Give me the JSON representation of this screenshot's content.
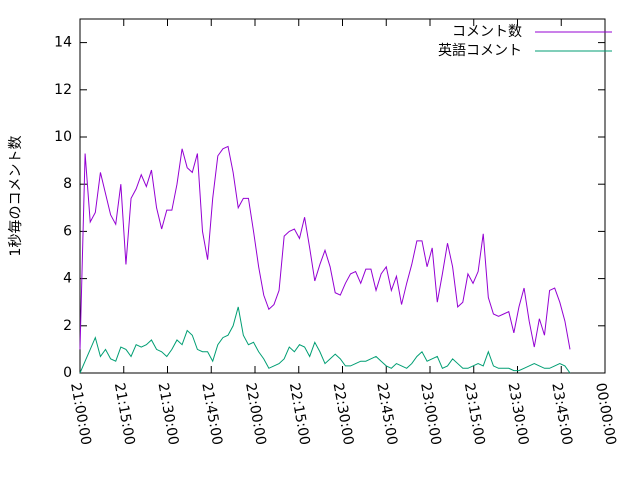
{
  "chart_data": {
    "type": "line",
    "ylabel": "1秒毎のコメント数",
    "x": [
      0,
      1.75,
      3.5,
      5.25,
      7,
      8.75,
      10.5,
      12.25,
      14,
      15.75,
      17.5,
      19.25,
      21,
      22.75,
      24.5,
      26.25,
      28,
      29.75,
      31.5,
      33.25,
      35,
      36.75,
      38.5,
      40.25,
      42,
      43.75,
      45.5,
      47.25,
      49,
      50.75,
      52.5,
      54.25,
      56,
      57.75,
      59.5,
      61.25,
      63,
      64.75,
      66.5,
      68.25,
      70,
      71.75,
      73.5,
      75.25,
      77,
      78.75,
      80.5,
      82.25,
      84,
      85.75,
      87.5,
      89.25,
      91,
      92.75,
      94.5,
      96.25,
      98,
      99.75,
      101.5,
      103.25,
      105,
      106.75,
      108.5,
      110.25,
      112,
      113.75,
      115.5,
      117.25,
      119,
      120.75,
      122.5,
      124.25,
      126,
      127.75,
      129.5,
      131.25,
      133,
      134.75,
      136.5,
      138.25,
      140,
      141.75,
      143.5,
      145.25,
      147,
      148.75,
      150.5,
      152.25,
      154,
      155.75,
      157.5,
      159.25,
      161,
      162.75,
      164.5,
      166.25,
      168
    ],
    "series": [
      {
        "name": "コメント数",
        "color": "#9400d3",
        "values": [
          1.0,
          9.3,
          6.4,
          6.8,
          8.5,
          7.6,
          6.7,
          6.3,
          8.0,
          4.6,
          7.4,
          7.8,
          8.4,
          7.9,
          8.6,
          7.0,
          6.1,
          6.9,
          6.9,
          8.0,
          9.5,
          8.7,
          8.5,
          9.3,
          6.0,
          4.8,
          7.4,
          9.2,
          9.5,
          9.6,
          8.5,
          7.0,
          7.4,
          7.4,
          6.0,
          4.5,
          3.3,
          2.7,
          2.9,
          3.5,
          5.8,
          6.0,
          6.1,
          5.7,
          6.6,
          5.3,
          3.9,
          4.6,
          5.2,
          4.5,
          3.4,
          3.3,
          3.8,
          4.2,
          4.3,
          3.8,
          4.4,
          4.4,
          3.5,
          4.2,
          4.5,
          3.5,
          4.1,
          2.9,
          3.8,
          4.6,
          5.6,
          5.6,
          4.5,
          5.3,
          3.0,
          4.2,
          5.5,
          4.5,
          2.8,
          3.0,
          4.2,
          3.8,
          4.3,
          5.9,
          3.2,
          2.5,
          2.4,
          2.5,
          2.6,
          1.7,
          2.8,
          3.6,
          2.2,
          1.1,
          2.3,
          1.6,
          3.5,
          3.6,
          3.0,
          2.2,
          1.0
        ]
      },
      {
        "name": "英語コメント",
        "color": "#009e73",
        "values": [
          0,
          0.5,
          1.0,
          1.5,
          0.7,
          1.0,
          0.6,
          0.5,
          1.1,
          1.0,
          0.7,
          1.2,
          1.1,
          1.2,
          1.4,
          1.0,
          0.9,
          0.7,
          1.0,
          1.4,
          1.2,
          1.8,
          1.6,
          1.0,
          0.9,
          0.9,
          0.5,
          1.2,
          1.5,
          1.6,
          2.0,
          2.8,
          1.6,
          1.2,
          1.3,
          0.9,
          0.6,
          0.2,
          0.3,
          0.4,
          0.6,
          1.1,
          0.9,
          1.2,
          1.1,
          0.7,
          1.3,
          0.9,
          0.4,
          0.6,
          0.8,
          0.6,
          0.3,
          0.3,
          0.4,
          0.5,
          0.5,
          0.6,
          0.7,
          0.5,
          0.3,
          0.2,
          0.4,
          0.3,
          0.2,
          0.4,
          0.7,
          0.9,
          0.5,
          0.6,
          0.7,
          0.2,
          0.3,
          0.6,
          0.4,
          0.2,
          0.2,
          0.3,
          0.4,
          0.3,
          0.9,
          0.3,
          0.2,
          0.2,
          0.2,
          0.1,
          0.1,
          0.2,
          0.3,
          0.4,
          0.3,
          0.2,
          0.2,
          0.3,
          0.4,
          0.3,
          0.0
        ]
      }
    ],
    "xlim": [
      0,
      180
    ],
    "xticks": [
      {
        "value": 0,
        "label": "21:00:00"
      },
      {
        "value": 15,
        "label": "21:15:00"
      },
      {
        "value": 30,
        "label": "21:30:00"
      },
      {
        "value": 45,
        "label": "21:45:00"
      },
      {
        "value": 60,
        "label": "22:00:00"
      },
      {
        "value": 75,
        "label": "22:15:00"
      },
      {
        "value": 90,
        "label": "22:30:00"
      },
      {
        "value": 105,
        "label": "22:45:00"
      },
      {
        "value": 120,
        "label": "23:00:00"
      },
      {
        "value": 135,
        "label": "23:15:00"
      },
      {
        "value": 150,
        "label": "23:30:00"
      },
      {
        "value": 165,
        "label": "23:45:00"
      },
      {
        "value": 180,
        "label": "00:00:00"
      }
    ],
    "ylim": [
      0,
      15
    ],
    "yticks": [
      0,
      2,
      4,
      6,
      8,
      10,
      12,
      14
    ],
    "legend": "top-right"
  }
}
